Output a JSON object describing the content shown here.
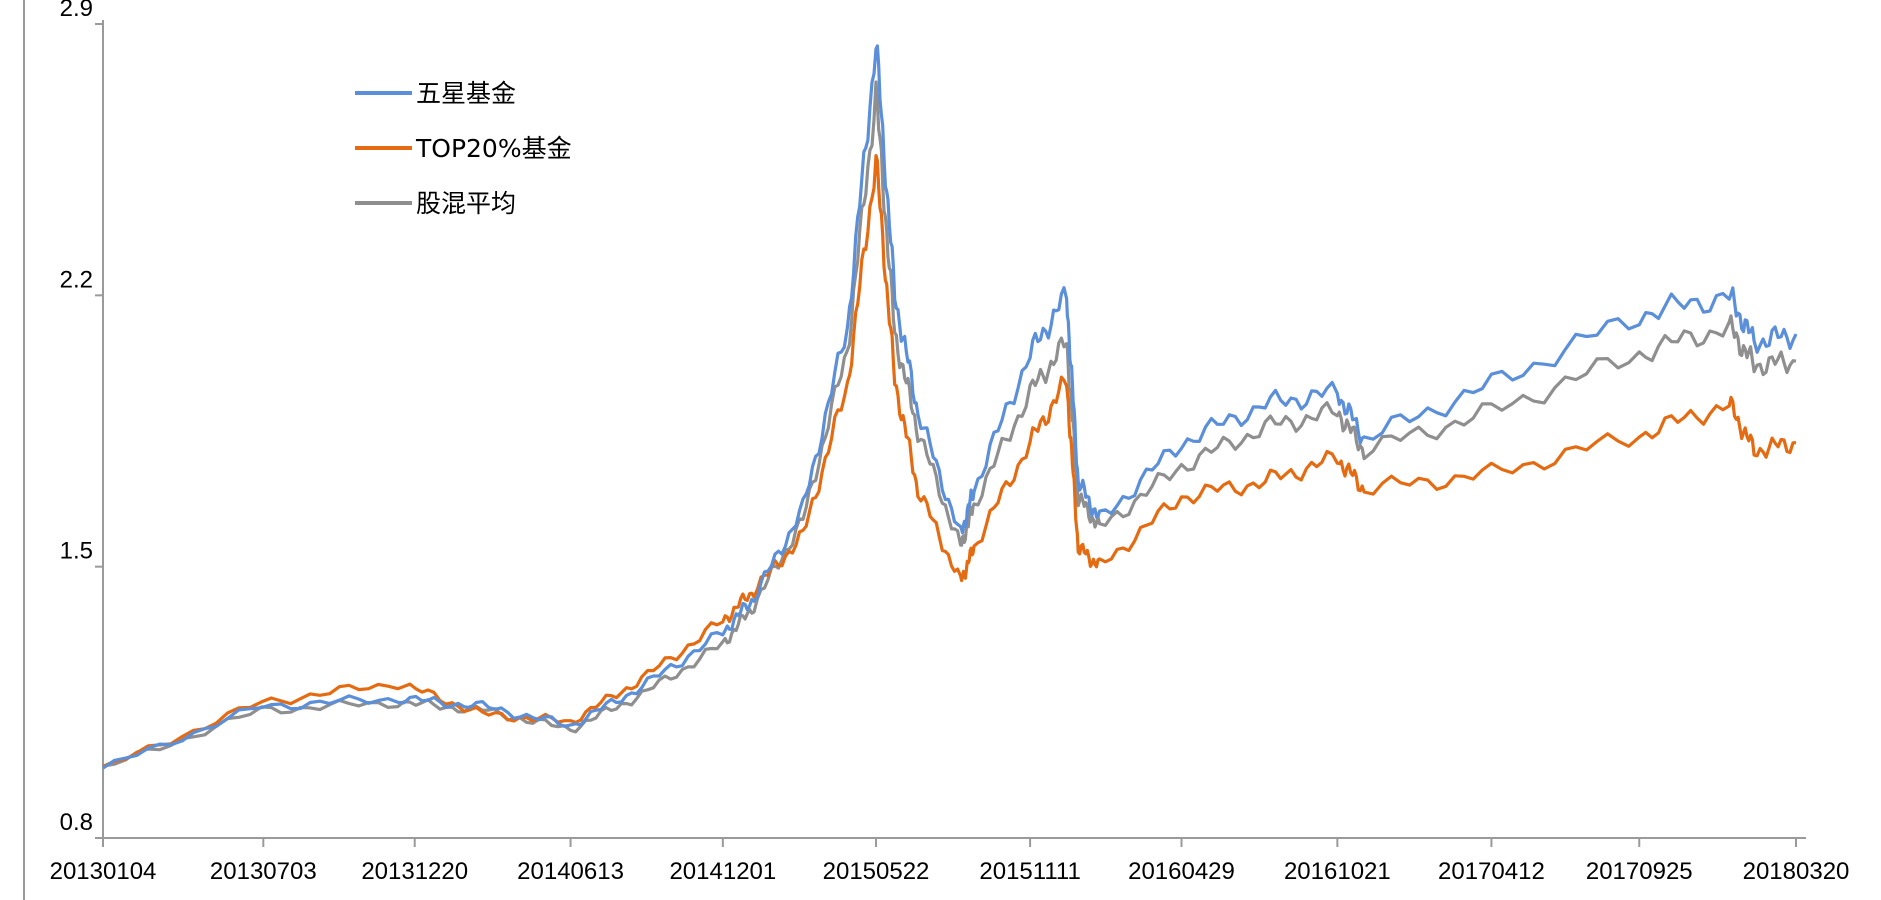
{
  "chart_data": {
    "type": "line",
    "title": "",
    "xlabel": "",
    "ylabel": "",
    "ylim": [
      0.8,
      2.9
    ],
    "yticks": [
      "0.8",
      "1.5",
      "2.2",
      "2.9"
    ],
    "x_tick_labels": [
      "20130104",
      "20130703",
      "20131220",
      "20140613",
      "20141201",
      "20150522",
      "20151111",
      "20160429",
      "20161021",
      "20170412",
      "20170925",
      "20180320"
    ],
    "x": [
      "20130104",
      "20130701",
      "20131201",
      "20140306",
      "20140613",
      "20140901",
      "20141201",
      "20150105",
      "20150301",
      "20150420",
      "20150522",
      "20150612",
      "20150708",
      "20150825",
      "20150909",
      "20151111",
      "20151222",
      "20160104",
      "20160128",
      "20160429",
      "20160801",
      "20161021",
      "20161120",
      "20170412",
      "20170925",
      "20180104",
      "20180201",
      "20180320"
    ],
    "grid": false,
    "legend_position": "top-left",
    "series": [
      {
        "name": "五星基金",
        "color": "#5b8fd9",
        "values": [
          0.98,
          1.14,
          1.16,
          1.14,
          1.09,
          1.19,
          1.33,
          1.42,
          1.65,
          2.12,
          2.85,
          2.2,
          1.9,
          1.58,
          1.7,
          2.05,
          2.2,
          1.72,
          1.62,
          1.82,
          1.92,
          1.95,
          1.83,
          1.97,
          2.15,
          2.2,
          2.08,
          2.1
        ]
      },
      {
        "name": "TOP20%基金",
        "color": "#e56b12",
        "values": [
          0.98,
          1.15,
          1.2,
          1.12,
          1.1,
          1.21,
          1.36,
          1.44,
          1.58,
          1.97,
          2.55,
          1.98,
          1.7,
          1.46,
          1.55,
          1.82,
          1.98,
          1.55,
          1.5,
          1.68,
          1.72,
          1.78,
          1.7,
          1.74,
          1.84,
          1.92,
          1.8,
          1.82
        ]
      },
      {
        "name": "股混平均",
        "color": "#8f8f8f",
        "values": [
          0.98,
          1.13,
          1.15,
          1.13,
          1.08,
          1.17,
          1.3,
          1.4,
          1.62,
          2.06,
          2.72,
          2.1,
          1.85,
          1.55,
          1.66,
          1.95,
          2.08,
          1.68,
          1.6,
          1.76,
          1.86,
          1.9,
          1.8,
          1.9,
          2.05,
          2.12,
          2.02,
          2.03
        ]
      }
    ]
  }
}
